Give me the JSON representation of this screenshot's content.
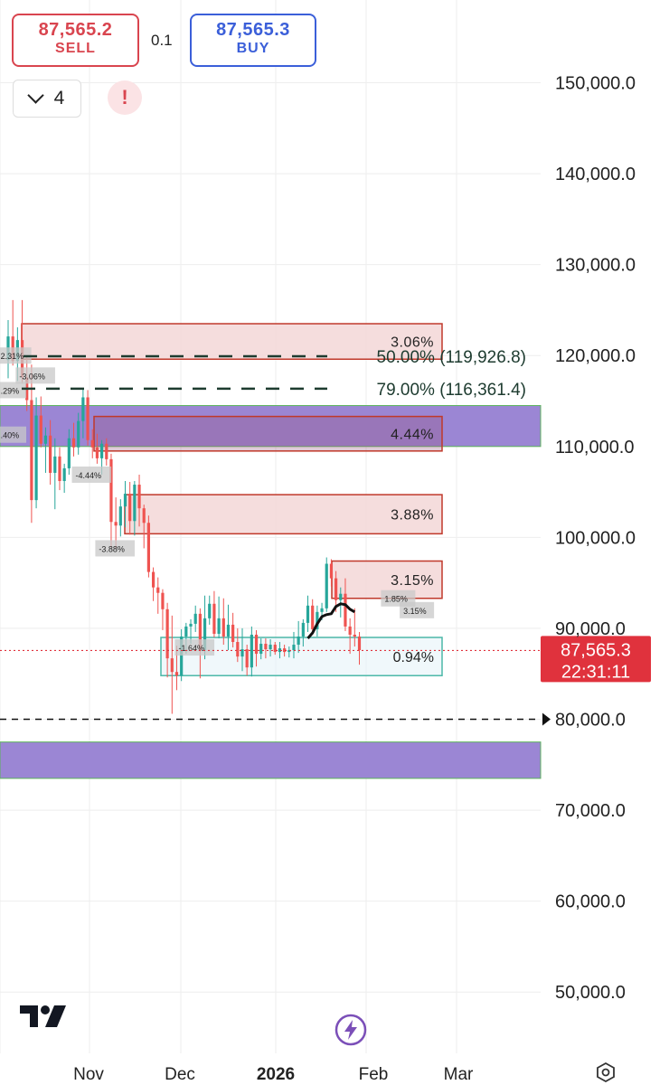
{
  "order_panel": {
    "sell_price": "87,565.2",
    "sell_label": "SELL",
    "quantity": "0.1",
    "buy_price": "87,565.3",
    "buy_label": "BUY"
  },
  "toolbar": {
    "layers_count": "4",
    "alert_icon": "exclamation-icon"
  },
  "colors": {
    "up": "#26a69a",
    "down": "#ef5350",
    "price_line": "#e0323d",
    "zone_purple": "#9b86d4",
    "supply_fill": "#f3d7d7",
    "supply_border": "#c0392b",
    "demand_border": "#4cb8a8",
    "fib_line": "#1d3b2f"
  },
  "chart_data": {
    "type": "candlestick",
    "y_range": [
      45000,
      155000
    ],
    "y_ticks": [
      50000,
      60000,
      70000,
      80000,
      90000,
      100000,
      110000,
      120000,
      130000,
      140000,
      150000
    ],
    "y_tick_labels": [
      "50,000.0",
      "60,000.0",
      "70,000.0",
      "80,000.0",
      "90,000.0",
      "100,000.0",
      "110,000.0",
      "120,000.0",
      "130,000.0",
      "140,000.0",
      "150,000.0"
    ],
    "x_labels": [
      "Nov",
      "Dec",
      "2026",
      "Feb",
      "Mar"
    ],
    "current_price": 87565.3,
    "current_price_label": "87,565.3",
    "countdown": "22:31:11",
    "horizontal_line": 80000,
    "fib_levels": [
      {
        "price": 119926.8,
        "label": "50.00% (119,926.8)"
      },
      {
        "price": 116361.4,
        "label": "79.00% (116,361.4)"
      }
    ],
    "purple_zones": [
      {
        "top": 114500,
        "bottom": 110000
      },
      {
        "top": 77500,
        "bottom": 73500
      }
    ],
    "supply_zones": [
      {
        "top": 123500,
        "bottom": 119600,
        "label": "3.06%"
      },
      {
        "top": 113300,
        "bottom": 109500,
        "label": "4.44%"
      },
      {
        "top": 104700,
        "bottom": 100400,
        "label": "3.88%"
      },
      {
        "top": 97400,
        "bottom": 93300,
        "label": "3.15%"
      }
    ],
    "demand_zone": {
      "top": 89000,
      "bottom": 84800,
      "label": "0.94%"
    },
    "small_tags": [
      {
        "day": -2,
        "price": 120000,
        "text": "2.31%"
      },
      {
        "day": 2,
        "price": 117800,
        "text": "-3.06%"
      },
      {
        "day": -2,
        "price": 116200,
        "text": ".29%"
      },
      {
        "day": -2,
        "price": 111300,
        "text": ".40%"
      },
      {
        "day": 14,
        "price": 106900,
        "text": "-4.44%"
      },
      {
        "day": 19,
        "price": 98800,
        "text": "-3.88%"
      },
      {
        "day": 36,
        "price": 87900,
        "text": "-1.64%"
      },
      {
        "day": 80,
        "price": 93300,
        "text": "1.85%"
      },
      {
        "day": 84,
        "price": 92000,
        "text": "3.15%"
      }
    ],
    "candles": [
      {
        "o": 119500,
        "h": 123900,
        "l": 117500,
        "c": 122100
      },
      {
        "o": 122100,
        "h": 126100,
        "l": 118900,
        "c": 119400
      },
      {
        "o": 119400,
        "h": 123100,
        "l": 117200,
        "c": 121700
      },
      {
        "o": 121700,
        "h": 126100,
        "l": 116900,
        "c": 117600
      },
      {
        "o": 117600,
        "h": 119900,
        "l": 113900,
        "c": 115100
      },
      {
        "o": 115100,
        "h": 119000,
        "l": 101600,
        "c": 104100
      },
      {
        "o": 104100,
        "h": 115400,
        "l": 103200,
        "c": 113400
      },
      {
        "o": 113400,
        "h": 115500,
        "l": 109900,
        "c": 110300
      },
      {
        "o": 110300,
        "h": 112100,
        "l": 107100,
        "c": 111200
      },
      {
        "o": 111200,
        "h": 112900,
        "l": 105800,
        "c": 107100
      },
      {
        "o": 107100,
        "h": 110900,
        "l": 103100,
        "c": 108900
      },
      {
        "o": 108900,
        "h": 109900,
        "l": 105200,
        "c": 106200
      },
      {
        "o": 106200,
        "h": 108100,
        "l": 104900,
        "c": 107600
      },
      {
        "o": 107600,
        "h": 111900,
        "l": 106900,
        "c": 110900
      },
      {
        "o": 110900,
        "h": 112600,
        "l": 108900,
        "c": 109900
      },
      {
        "o": 109900,
        "h": 113700,
        "l": 109100,
        "c": 112800
      },
      {
        "o": 112800,
        "h": 116400,
        "l": 110900,
        "c": 115400
      },
      {
        "o": 115400,
        "h": 116200,
        "l": 110100,
        "c": 110700
      },
      {
        "o": 110700,
        "h": 111900,
        "l": 108700,
        "c": 109900
      },
      {
        "o": 109900,
        "h": 111400,
        "l": 108100,
        "c": 108700
      },
      {
        "o": 108700,
        "h": 110700,
        "l": 106900,
        "c": 110300
      },
      {
        "o": 110300,
        "h": 110900,
        "l": 107900,
        "c": 108600
      },
      {
        "o": 108600,
        "h": 109200,
        "l": 98900,
        "c": 101700
      },
      {
        "o": 101700,
        "h": 104400,
        "l": 98800,
        "c": 101300
      },
      {
        "o": 101300,
        "h": 104200,
        "l": 100100,
        "c": 103400
      },
      {
        "o": 103400,
        "h": 106200,
        "l": 101100,
        "c": 104800
      },
      {
        "o": 104800,
        "h": 106100,
        "l": 100300,
        "c": 101800
      },
      {
        "o": 101800,
        "h": 106200,
        "l": 100200,
        "c": 105800
      },
      {
        "o": 105800,
        "h": 106900,
        "l": 101200,
        "c": 103200
      },
      {
        "o": 103200,
        "h": 103600,
        "l": 98800,
        "c": 101600
      },
      {
        "o": 101600,
        "h": 102400,
        "l": 95600,
        "c": 96200
      },
      {
        "o": 96200,
        "h": 96700,
        "l": 93000,
        "c": 94500
      },
      {
        "o": 94500,
        "h": 95600,
        "l": 91600,
        "c": 93900
      },
      {
        "o": 93900,
        "h": 94300,
        "l": 89800,
        "c": 92100
      },
      {
        "o": 92100,
        "h": 92800,
        "l": 84600,
        "c": 86700
      },
      {
        "o": 86700,
        "h": 91400,
        "l": 80600,
        "c": 85200
      },
      {
        "o": 85200,
        "h": 88100,
        "l": 83200,
        "c": 84800
      },
      {
        "o": 84800,
        "h": 89900,
        "l": 84200,
        "c": 89100
      },
      {
        "o": 89100,
        "h": 90600,
        "l": 87200,
        "c": 90200
      },
      {
        "o": 90200,
        "h": 91000,
        "l": 88300,
        "c": 90500
      },
      {
        "o": 90500,
        "h": 92500,
        "l": 89600,
        "c": 91600
      },
      {
        "o": 91600,
        "h": 92200,
        "l": 84500,
        "c": 87600
      },
      {
        "o": 87600,
        "h": 93600,
        "l": 86600,
        "c": 91100
      },
      {
        "o": 91100,
        "h": 93600,
        "l": 90400,
        "c": 92700
      },
      {
        "o": 92700,
        "h": 94100,
        "l": 89000,
        "c": 89400
      },
      {
        "o": 89400,
        "h": 93500,
        "l": 88900,
        "c": 91100
      },
      {
        "o": 91100,
        "h": 93300,
        "l": 88200,
        "c": 89100
      },
      {
        "o": 89100,
        "h": 92600,
        "l": 87600,
        "c": 90400
      },
      {
        "o": 90400,
        "h": 91700,
        "l": 87900,
        "c": 88500
      },
      {
        "o": 88500,
        "h": 90000,
        "l": 86300,
        "c": 86900
      },
      {
        "o": 86900,
        "h": 90000,
        "l": 85300,
        "c": 87700
      },
      {
        "o": 87700,
        "h": 88200,
        "l": 84800,
        "c": 85700
      },
      {
        "o": 85700,
        "h": 90200,
        "l": 84700,
        "c": 89300
      },
      {
        "o": 89300,
        "h": 89800,
        "l": 85800,
        "c": 87200
      },
      {
        "o": 87200,
        "h": 88900,
        "l": 86600,
        "c": 88300
      },
      {
        "o": 88300,
        "h": 88900,
        "l": 86700,
        "c": 87700
      },
      {
        "o": 87700,
        "h": 88800,
        "l": 86900,
        "c": 88200
      },
      {
        "o": 88200,
        "h": 88500,
        "l": 87100,
        "c": 87400
      },
      {
        "o": 87400,
        "h": 88500,
        "l": 86700,
        "c": 87800
      },
      {
        "o": 87800,
        "h": 88200,
        "l": 86900,
        "c": 87400
      },
      {
        "o": 87400,
        "h": 88000,
        "l": 86800,
        "c": 87600
      },
      {
        "o": 87600,
        "h": 89600,
        "l": 86700,
        "c": 88200
      },
      {
        "o": 88200,
        "h": 90800,
        "l": 87300,
        "c": 89100
      },
      {
        "o": 89100,
        "h": 91000,
        "l": 88000,
        "c": 90600
      },
      {
        "o": 90600,
        "h": 93600,
        "l": 89600,
        "c": 92500
      },
      {
        "o": 92500,
        "h": 93200,
        "l": 89300,
        "c": 89900
      },
      {
        "o": 89900,
        "h": 92500,
        "l": 89100,
        "c": 91800
      },
      {
        "o": 91800,
        "h": 92800,
        "l": 90900,
        "c": 92200
      },
      {
        "o": 92200,
        "h": 97800,
        "l": 91800,
        "c": 97100
      },
      {
        "o": 97100,
        "h": 97600,
        "l": 94600,
        "c": 95500
      },
      {
        "o": 95500,
        "h": 96300,
        "l": 91800,
        "c": 93100
      },
      {
        "o": 93100,
        "h": 94500,
        "l": 91200,
        "c": 93800
      },
      {
        "o": 93800,
        "h": 95500,
        "l": 89700,
        "c": 90200
      },
      {
        "o": 90200,
        "h": 91100,
        "l": 87200,
        "c": 89300
      },
      {
        "o": 89300,
        "h": 92200,
        "l": 88000,
        "c": 89100
      },
      {
        "o": 89100,
        "h": 89600,
        "l": 86000,
        "c": 87600
      }
    ]
  }
}
